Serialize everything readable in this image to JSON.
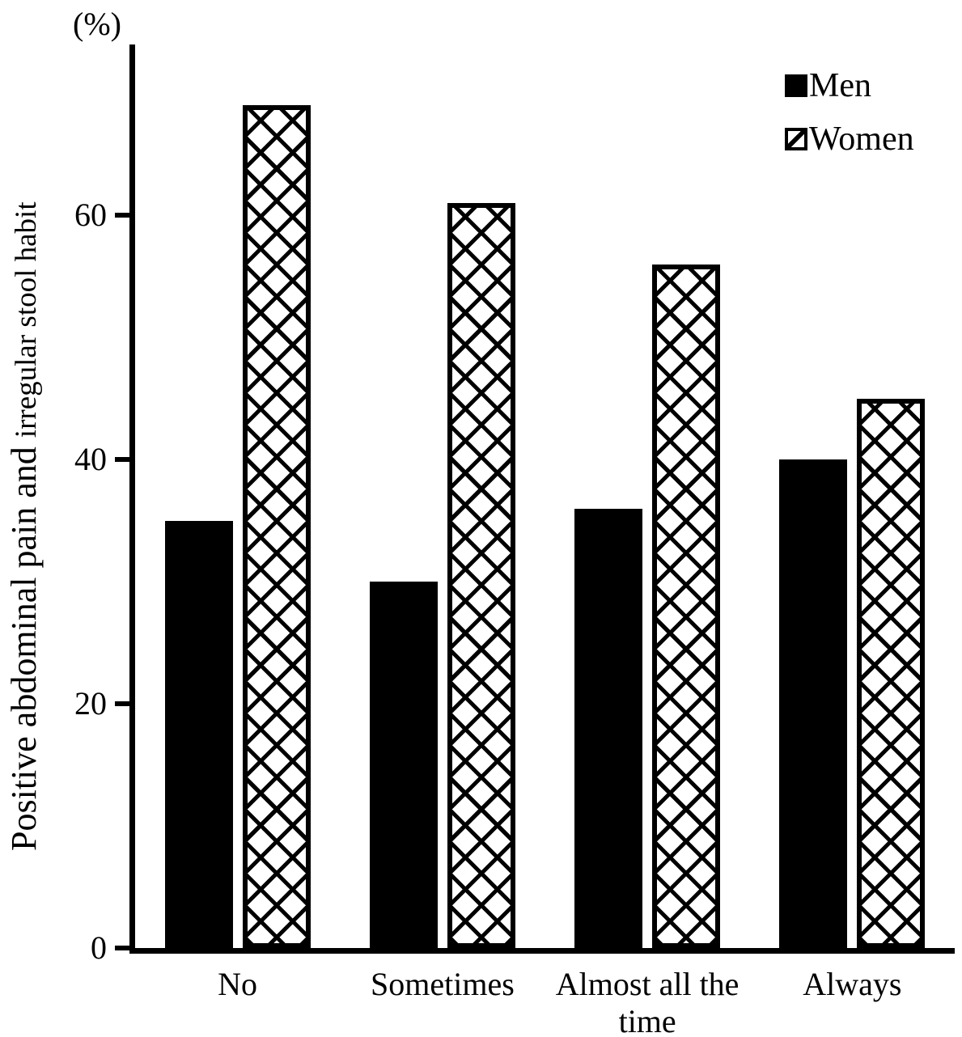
{
  "chart_data": {
    "type": "bar",
    "title": "",
    "unit_label": "(%)",
    "ylabel": "Positive abdominal pain and irregular stool habit",
    "ylabel_part1": "Positive abdominal pain and ",
    "ylabel_part2": "irregular stool habit",
    "xlabel": "",
    "categories": [
      "No",
      "Sometimes",
      "Almost all the time",
      "Always"
    ],
    "series": [
      {
        "name": "Men",
        "pattern": "solid-black",
        "values": [
          35,
          30,
          36,
          40
        ]
      },
      {
        "name": "Women",
        "pattern": "diagonal-crosshatch",
        "values": [
          69,
          61,
          56,
          45
        ]
      }
    ],
    "yticks": [
      0,
      20,
      40,
      60
    ],
    "ylim": [
      0,
      74
    ],
    "grid": false,
    "legend_position": "top-right",
    "colors": {
      "bars_men": "#000000",
      "bars_women_lines": "#000000",
      "background": "#ffffff",
      "axis": "#000000"
    }
  },
  "legend": {
    "items": [
      {
        "label": "Men",
        "swatch": "solid-black-square"
      },
      {
        "label": "Women",
        "swatch": "crosshatch-square"
      }
    ]
  }
}
